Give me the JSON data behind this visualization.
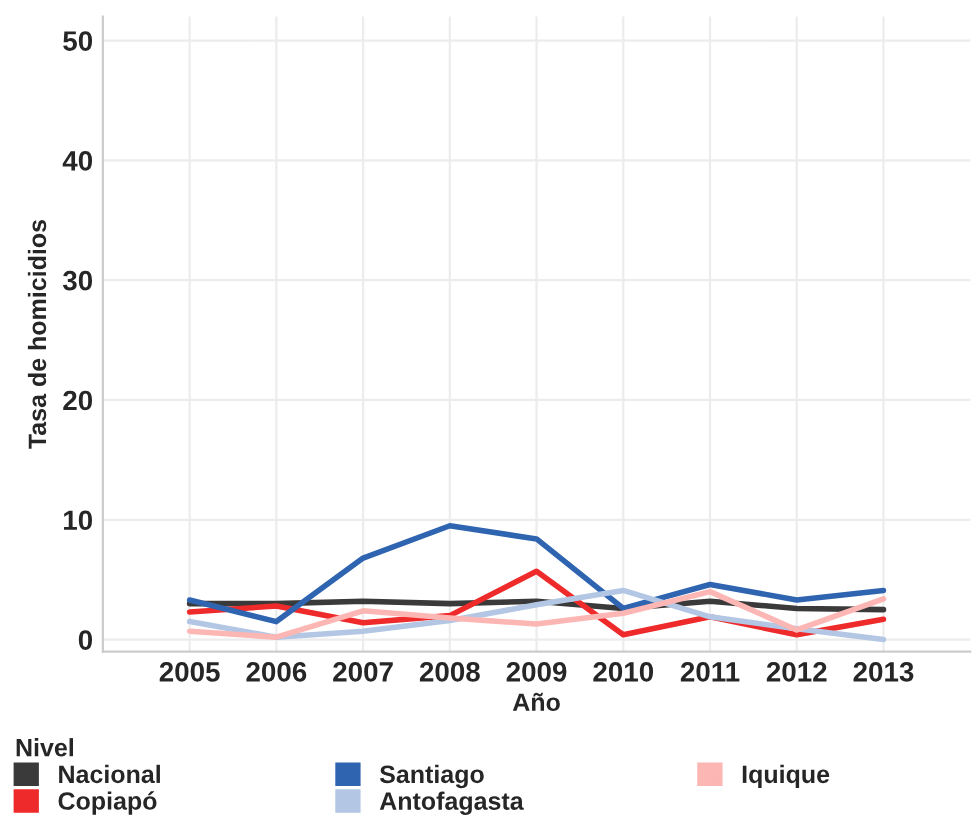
{
  "chart_data": {
    "type": "line",
    "xlabel": "Año",
    "ylabel": "Tasa de homicidios",
    "legend_title": "Nivel",
    "categories": [
      "2005",
      "2006",
      "2007",
      "2008",
      "2009",
      "2010",
      "2011",
      "2012",
      "2013"
    ],
    "series": [
      {
        "name": "Nacional",
        "color": "#3a3a3a",
        "values": [
          3.0,
          3.0,
          3.2,
          3.0,
          3.2,
          2.6,
          3.2,
          2.6,
          2.5
        ]
      },
      {
        "name": "Copiapó",
        "color": "#ee2a2a",
        "values": [
          2.3,
          2.8,
          1.4,
          2.0,
          5.7,
          0.4,
          1.9,
          0.4,
          1.7
        ]
      },
      {
        "name": "Santiago",
        "color": "#2e64b0",
        "values": [
          3.3,
          1.5,
          6.8,
          9.5,
          8.4,
          2.6,
          4.6,
          3.3,
          4.1
        ]
      },
      {
        "name": "Antofagasta",
        "color": "#b3c7e5",
        "values": [
          1.5,
          0.2,
          0.7,
          1.6,
          2.9,
          4.1,
          1.9,
          0.9,
          0.0
        ]
      },
      {
        "name": "Iquique",
        "color": "#fcb6b3",
        "values": [
          0.7,
          0.2,
          2.4,
          1.8,
          1.3,
          2.2,
          4.0,
          0.8,
          3.4
        ]
      }
    ],
    "ylim": [
      -1,
      52
    ],
    "yticks": [
      0,
      10,
      20,
      30,
      40,
      50
    ],
    "grid": true,
    "legend": "bottom",
    "marker": "none",
    "line_style": "solid"
  }
}
